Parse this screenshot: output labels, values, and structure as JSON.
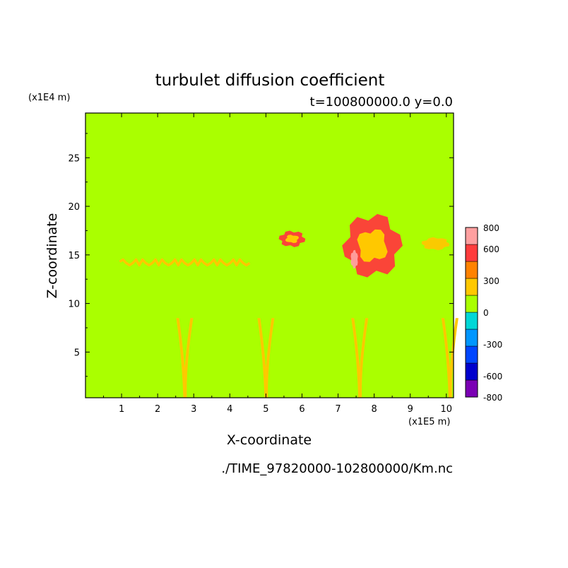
{
  "chart_data": {
    "type": "heatmap",
    "title": "turbulet diffusion coefficient",
    "subtitle": "t=100800000.0 y=0.0",
    "xlabel": "X-coordinate",
    "ylabel": "Z-coordinate",
    "x_scale_label": "(x1E5 m)",
    "y_scale_label": "(x1E4 m)",
    "xlim": [
      0,
      10.2
    ],
    "ylim": [
      0.3,
      29.6
    ],
    "x_ticks": [
      "1",
      "2",
      "3",
      "4",
      "5",
      "6",
      "7",
      "8",
      "9",
      "10"
    ],
    "y_ticks": [
      "5",
      "10",
      "15",
      "20",
      "25"
    ],
    "background_level": "0",
    "colorbar": {
      "labels": [
        "800",
        "600",
        "300",
        "0",
        "-300",
        "-600",
        "-800"
      ],
      "levels": [
        {
          "color": "#7b00b4"
        },
        {
          "color": "#0000cd"
        },
        {
          "color": "#0046ff"
        },
        {
          "color": "#0096ff"
        },
        {
          "color": "#00d7d7"
        },
        {
          "color": "#aaff00"
        },
        {
          "color": "#ffc800"
        },
        {
          "color": "#ff8200"
        },
        {
          "color": "#ff3c3c"
        },
        {
          "color": "#ffa0a0"
        }
      ]
    },
    "features": [
      {
        "kind": "band",
        "level": "orange",
        "x": [
          0.95,
          4.55
        ],
        "z": 14.3
      },
      {
        "kind": "patch",
        "level": "red",
        "x": [
          5.35,
          6.1
        ],
        "z": [
          15.8,
          17.5
        ]
      },
      {
        "kind": "patch",
        "level": "red",
        "x": [
          7.1,
          8.8
        ],
        "z": [
          12.5,
          19.4
        ]
      },
      {
        "kind": "patch",
        "level": "pink",
        "x": [
          7.35,
          7.55
        ],
        "z": [
          13.6,
          15.5
        ]
      },
      {
        "kind": "patch",
        "level": "orange",
        "x": [
          9.3,
          10.1
        ],
        "z": [
          15.5,
          16.8
        ]
      },
      {
        "kind": "plume",
        "level": "orange",
        "x": 2.75,
        "z": [
          0.3,
          8.5
        ]
      },
      {
        "kind": "plume",
        "level": "orange",
        "x": 5.0,
        "z": [
          0.3,
          8.5
        ]
      },
      {
        "kind": "plume",
        "level": "orange",
        "x": 7.6,
        "z": [
          0.3,
          8.5
        ]
      },
      {
        "kind": "plume",
        "level": "orange",
        "x": 10.1,
        "z": [
          0.3,
          8.5
        ]
      }
    ]
  },
  "footer": {
    "source_file": "./TIME_97820000-102800000/Km.nc"
  }
}
